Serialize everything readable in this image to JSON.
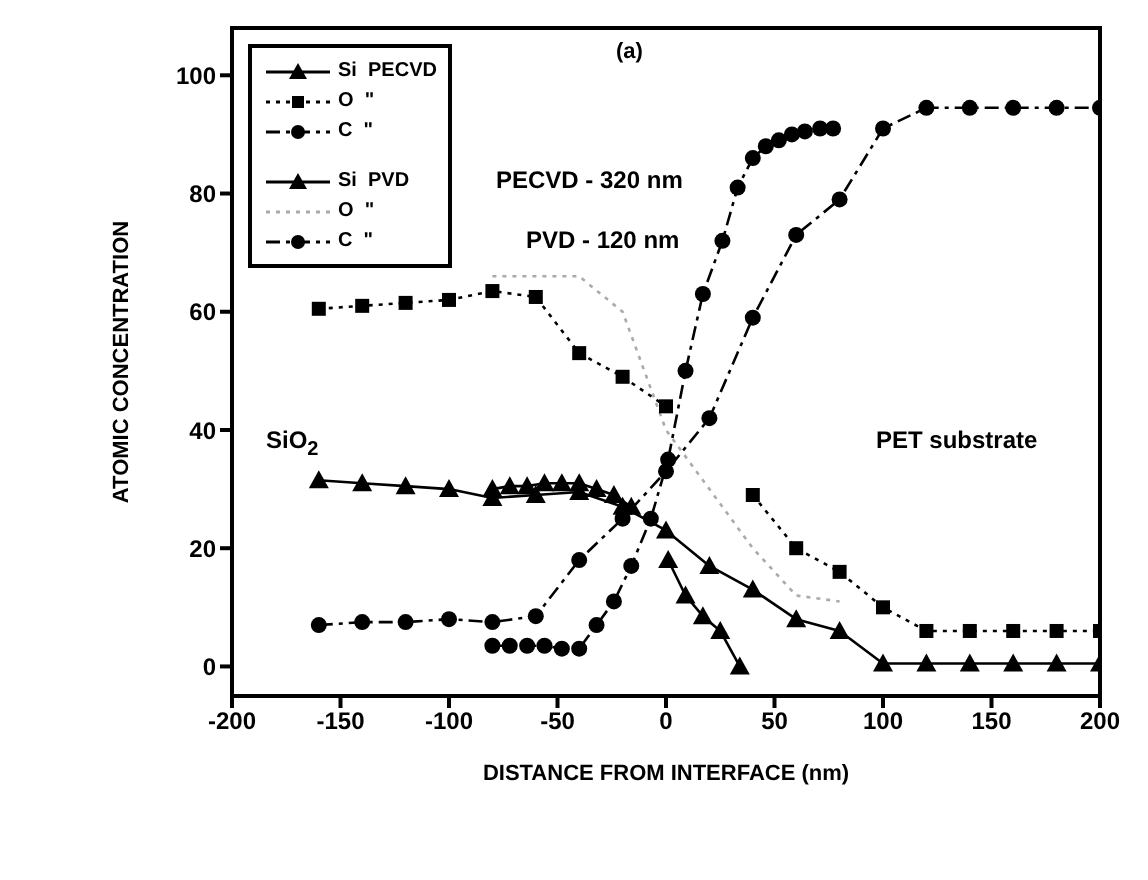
{
  "chart_data": {
    "type": "line",
    "title": "(a)",
    "xlabel": "DISTANCE FROM INTERFACE (nm)",
    "ylabel": "ATOMIC CONCENTRATION",
    "xlim": [
      -200,
      200
    ],
    "xticks": [
      -200,
      -150,
      -100,
      -50,
      0,
      50,
      100,
      150,
      200
    ],
    "ylim": [
      -5,
      108
    ],
    "yticks": [
      0,
      20,
      40,
      60,
      80,
      100
    ],
    "grid": false,
    "legend": "top left",
    "annotations": [
      "PECVD - 320 nm",
      "PVD - 120 nm",
      "SiO$_{2}$",
      "PET substrate"
    ],
    "series": [
      {
        "name": "Si  PECVD",
        "color": "#000000",
        "marker": "triangle",
        "line_style": "solid",
        "x": [
          -160,
          -140,
          -120,
          -100,
          -80,
          -60,
          -40,
          -20,
          0,
          20,
          40,
          60,
          80,
          100,
          120,
          140,
          160,
          180,
          200
        ],
        "values": [
          31.5,
          31,
          30.5,
          30,
          28.5,
          29,
          29.5,
          27,
          23,
          17,
          13,
          8,
          6,
          0.5,
          0.5,
          0.5,
          0.5,
          0.5,
          0.5
        ]
      },
      {
        "name": "O  \"",
        "color": "#000000",
        "marker": "square",
        "line_style": "dotted",
        "x": [
          -160,
          -140,
          -120,
          -100,
          -80,
          -60,
          -40,
          -20,
          0,
          20,
          40,
          60,
          80,
          100,
          120,
          140,
          160,
          180,
          200
        ],
        "values": [
          60.5,
          61,
          61.5,
          62,
          63.5,
          62.5,
          53,
          49,
          44,
          null,
          29,
          20,
          16,
          10,
          6,
          6,
          6,
          6,
          6
        ]
      },
      {
        "name": "C  \"",
        "color": "#000000",
        "marker": "circle",
        "line_style": "dashed",
        "x": [
          -160,
          -140,
          -120,
          -100,
          -80,
          -60,
          -40,
          -20,
          0,
          20,
          40,
          60,
          80,
          100,
          120,
          140,
          160,
          180,
          200
        ],
        "values": [
          7,
          7.5,
          7.5,
          8,
          7.5,
          8.5,
          18,
          25,
          33,
          42,
          59,
          73,
          79,
          91,
          94.5,
          94.5,
          94.5,
          94.5,
          94.5
        ]
      },
      {
        "name": "Si  PVD",
        "color": "#000000",
        "marker": "triangle",
        "line_style": "solid",
        "x": [
          -80,
          -72,
          -64,
          -56,
          -48,
          -40,
          -32,
          -24,
          -16,
          -8,
          1,
          9,
          17,
          25,
          34
        ],
        "values": [
          30,
          30.5,
          30.5,
          31,
          31,
          31,
          30,
          29,
          27,
          null,
          18,
          12,
          8.5,
          6,
          0
        ]
      },
      {
        "name": "O  \"",
        "color": "#aaaaaa",
        "marker": "none",
        "line_style": "dotted",
        "x": [
          -80,
          -60,
          -40,
          -30,
          -20,
          -10,
          0,
          20,
          40,
          60,
          80
        ],
        "values": [
          66,
          66,
          66,
          63,
          60,
          50,
          40,
          30,
          20,
          12,
          11
        ]
      },
      {
        "name": "C  \"",
        "color": "#000000",
        "marker": "circle",
        "line_style": "dashed",
        "x": [
          -80,
          -72,
          -64,
          -56,
          -48,
          -40,
          -32,
          -24,
          -16,
          -7,
          1,
          9,
          17,
          26,
          33,
          40,
          46,
          52,
          58,
          64,
          71,
          77
        ],
        "values": [
          3.5,
          3.5,
          3.5,
          3.5,
          3,
          3,
          7,
          11,
          17,
          25,
          35,
          50,
          63,
          72,
          81,
          86,
          88,
          89,
          90,
          90.5,
          91,
          91
        ]
      }
    ]
  }
}
